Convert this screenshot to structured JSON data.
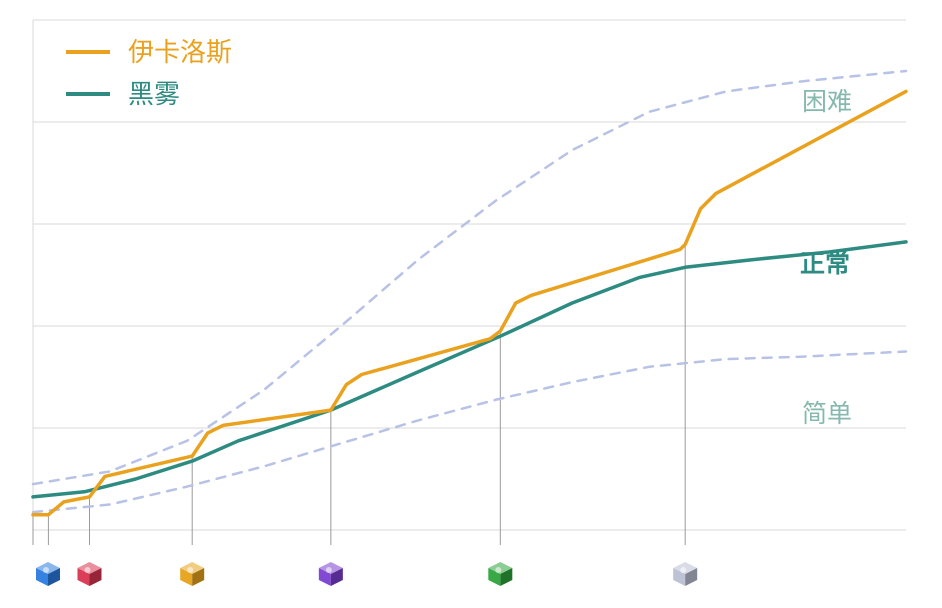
{
  "colors": {
    "icarus": "#EAA21E",
    "blackmist": "#2E8B82",
    "zone": "#B8C2E6",
    "zone_label": "#86B8AE",
    "normal_label": "#2E8B82",
    "grid": "#D9D9D9",
    "marker_line": "#9A9A9A"
  },
  "legend": [
    {
      "label": "伊卡洛斯",
      "color_key": "icarus"
    },
    {
      "label": "黑雾",
      "color_key": "blackmist"
    }
  ],
  "zone_labels": {
    "hard": "困难",
    "normal": "正常",
    "easy": "简单"
  },
  "markers": [
    {
      "x": 0,
      "icon": "blue-matrix-cube-icon",
      "color": "#2A7BE0"
    },
    {
      "x": 3,
      "icon": null,
      "color": null
    },
    {
      "x": 11,
      "icon": "red-matrix-cube-icon",
      "color": "#D8344F"
    },
    {
      "x": 31,
      "icon": "yellow-matrix-cube-icon",
      "color": "#E6A21A"
    },
    {
      "x": 58,
      "icon": "purple-matrix-cube-icon",
      "color": "#7B3FD0"
    },
    {
      "x": 91,
      "icon": "green-matrix-cube-icon",
      "color": "#2DA43A"
    },
    {
      "x": 127,
      "icon": "white-matrix-cube-icon",
      "color": "#B9BFD2"
    }
  ],
  "chart_data": {
    "type": "line",
    "title": "",
    "xlabel": "",
    "ylabel": "",
    "xlim": [
      0,
      170
    ],
    "ylim": [
      0,
      100
    ],
    "grid": "horizontal",
    "legend_position": "top-left",
    "series": [
      {
        "name": "伊卡洛斯",
        "color_key": "icarus",
        "style": "solid",
        "points": [
          [
            0,
            3
          ],
          [
            3,
            3
          ],
          [
            6,
            5.5
          ],
          [
            11,
            6.5
          ],
          [
            14,
            10.5
          ],
          [
            31,
            14.5
          ],
          [
            34,
            19
          ],
          [
            37,
            20.5
          ],
          [
            58,
            23.5
          ],
          [
            61,
            28.5
          ],
          [
            64,
            30.5
          ],
          [
            89,
            37.5
          ],
          [
            91,
            39
          ],
          [
            94,
            44.5
          ],
          [
            97,
            46
          ],
          [
            126,
            55
          ],
          [
            127,
            56
          ],
          [
            130,
            63
          ],
          [
            133,
            66
          ],
          [
            170,
            86
          ]
        ]
      },
      {
        "name": "黑雾",
        "color_key": "blackmist",
        "style": "solid",
        "points": [
          [
            0,
            6.5
          ],
          [
            10,
            7.5
          ],
          [
            20,
            10
          ],
          [
            31,
            13.5
          ],
          [
            40,
            17.5
          ],
          [
            58,
            23.5
          ],
          [
            75,
            31
          ],
          [
            91,
            38
          ],
          [
            105,
            44.5
          ],
          [
            118,
            49.5
          ],
          [
            127,
            51.5
          ],
          [
            140,
            53
          ],
          [
            155,
            54.5
          ],
          [
            170,
            56.5
          ]
        ]
      },
      {
        "name": "困难",
        "color_key": "zone",
        "style": "dashed",
        "points": [
          [
            0,
            9
          ],
          [
            15,
            11.5
          ],
          [
            30,
            17.5
          ],
          [
            45,
            27.5
          ],
          [
            60,
            40
          ],
          [
            75,
            53
          ],
          [
            90,
            64.5
          ],
          [
            105,
            74.5
          ],
          [
            120,
            82
          ],
          [
            135,
            86
          ],
          [
            150,
            88
          ],
          [
            170,
            90
          ]
        ]
      },
      {
        "name": "简单",
        "color_key": "zone",
        "style": "dashed",
        "points": [
          [
            0,
            3.5
          ],
          [
            15,
            5
          ],
          [
            30,
            8.5
          ],
          [
            45,
            12.5
          ],
          [
            60,
            17
          ],
          [
            75,
            21.5
          ],
          [
            90,
            25.5
          ],
          [
            105,
            29
          ],
          [
            120,
            32
          ],
          [
            135,
            33.5
          ],
          [
            150,
            34
          ],
          [
            170,
            35
          ]
        ]
      }
    ]
  }
}
